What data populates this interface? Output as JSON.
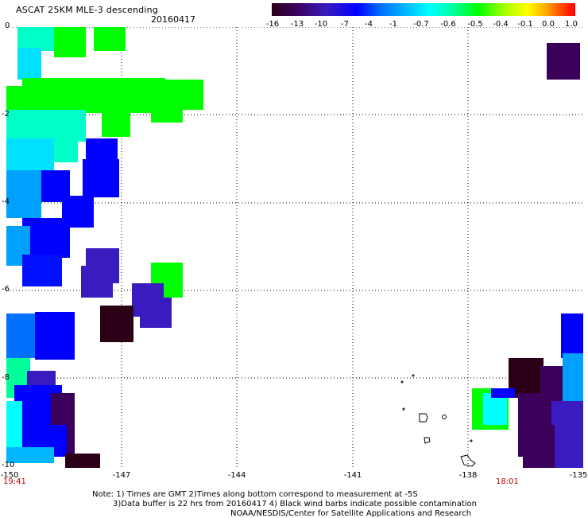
{
  "header": {
    "title": "ASCAT 25KM MLE-3 descending",
    "date": "20160417"
  },
  "colorbar": {
    "ticks": [
      "-16",
      "-13",
      "-10",
      "-7",
      "-4",
      "-1",
      "-0.7",
      "-0.6",
      "-0.5",
      "-0.4",
      "-0.1",
      "0.0",
      "1.0"
    ],
    "colors": [
      "#2b0016",
      "#3b005a",
      "#3a1bbf",
      "#0000ff",
      "#0070ff",
      "#00b7ff",
      "#00ffff",
      "#00ff9a",
      "#00ff00",
      "#9aff00",
      "#ffff00",
      "#ffb000",
      "#ff0000"
    ]
  },
  "axes": {
    "y_ticks": [
      "0",
      "-2",
      "-4",
      "-6",
      "-8",
      "-10"
    ],
    "x_ticks": [
      "-150",
      "-147",
      "-144",
      "-141",
      "-138",
      "-135"
    ],
    "x_range": [
      -150,
      -135
    ],
    "y_range": [
      0,
      -10
    ]
  },
  "times": {
    "left": "19:41",
    "right": "18:01"
  },
  "notes": {
    "line1": "Note: 1) Times are GMT 2)Times along bottom correspond to measurement at -5S",
    "line2": "3)Data buffer is 22 hrs from 20160417 4) Black wind barbs indicate possible contamination",
    "line3": "NOAA/NESDIS/Center for Satellite Applications and Research"
  }
}
